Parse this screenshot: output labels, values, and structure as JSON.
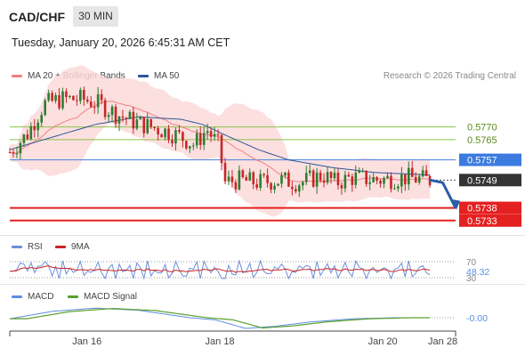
{
  "header": {
    "pair": "CAD/CHF",
    "timeframe": "30 MIN",
    "datetime": "Tuesday, January 20, 2026 6:45:31 AM CET"
  },
  "legend": {
    "ma20_label": "MA 20 + Bollinger Bands",
    "ma50_label": "MA 50",
    "ma20_color": "#f08080",
    "ma50_color": "#2b5797",
    "credit": "Research © 2026 Trading Central"
  },
  "colors": {
    "up": "#2e7d32",
    "down": "#c62828",
    "band": "#fcd9d9",
    "resistance_green": "#8bc34a",
    "pivot_blue": "#5c8de0",
    "support_red": "#e52020",
    "current": "#333333",
    "rsi": "#6a8fd8",
    "rsi_ma": "#cc2222",
    "macd": "#5c8de0",
    "macd_signal": "#5aa02c"
  },
  "chart_data": [
    {
      "type": "candlestick",
      "ylim": [
        0.5728,
        0.5785
      ],
      "x_ticks": [
        "Jan 16",
        "Jan 18",
        "Jan 20",
        "Jan 28"
      ],
      "levels": [
        {
          "name": "resistance-2",
          "value": 0.577,
          "label": "0.5770",
          "style": "green"
        },
        {
          "name": "resistance-1",
          "value": 0.5765,
          "label": "0.5765",
          "style": "green"
        },
        {
          "name": "pivot",
          "value": 0.5757,
          "label": "0.5757",
          "style": "blue"
        },
        {
          "name": "current",
          "value": 0.5749,
          "label": "0.5749",
          "style": "current"
        },
        {
          "name": "support-1",
          "value": 0.5738,
          "label": "0.5738",
          "style": "red"
        },
        {
          "name": "support-2",
          "value": 0.5733,
          "label": "0.5733",
          "style": "red"
        }
      ],
      "price_path": [
        [
          0,
          0.576
        ],
        [
          4,
          0.5767
        ],
        [
          8,
          0.5779
        ],
        [
          12,
          0.5781
        ],
        [
          17,
          0.5781
        ],
        [
          21,
          0.5779
        ],
        [
          25,
          0.5775
        ],
        [
          29,
          0.5772
        ],
        [
          33,
          0.577
        ],
        [
          37,
          0.5768
        ],
        [
          40,
          0.5766
        ],
        [
          43,
          0.5763
        ],
        [
          46,
          0.5769
        ],
        [
          49,
          0.5762
        ],
        [
          50,
          0.5748
        ],
        [
          53,
          0.5749
        ],
        [
          58,
          0.5748
        ],
        [
          63,
          0.5749
        ],
        [
          68,
          0.5748
        ],
        [
          73,
          0.5751
        ],
        [
          76,
          0.5748
        ],
        [
          80,
          0.575
        ],
        [
          86,
          0.5749
        ],
        [
          92,
          0.575
        ],
        [
          98,
          0.5749
        ]
      ],
      "ma50_path": [
        [
          0,
          0.5761
        ],
        [
          10,
          0.5766
        ],
        [
          20,
          0.5771
        ],
        [
          30,
          0.5774
        ],
        [
          40,
          0.5773
        ],
        [
          45,
          0.5771
        ],
        [
          50,
          0.5767
        ],
        [
          58,
          0.5761
        ],
        [
          65,
          0.5757
        ],
        [
          75,
          0.5754
        ],
        [
          85,
          0.5752
        ],
        [
          98,
          0.5751
        ]
      ],
      "forecast_arrow": [
        [
          98,
          0.5749
        ],
        [
          101,
          0.5748
        ],
        [
          104,
          0.5738
        ]
      ]
    },
    {
      "type": "line",
      "name": "rsi-panel",
      "legend": [
        "RSI",
        "9MA"
      ],
      "ylim": [
        30,
        70
      ],
      "levels": [
        70,
        30
      ],
      "last_value": "48.32",
      "level_labels": [
        "70",
        "30"
      ]
    },
    {
      "type": "line",
      "name": "macd-panel",
      "legend": [
        "MACD",
        "MACD Signal"
      ],
      "last_value": "-0.00"
    }
  ]
}
